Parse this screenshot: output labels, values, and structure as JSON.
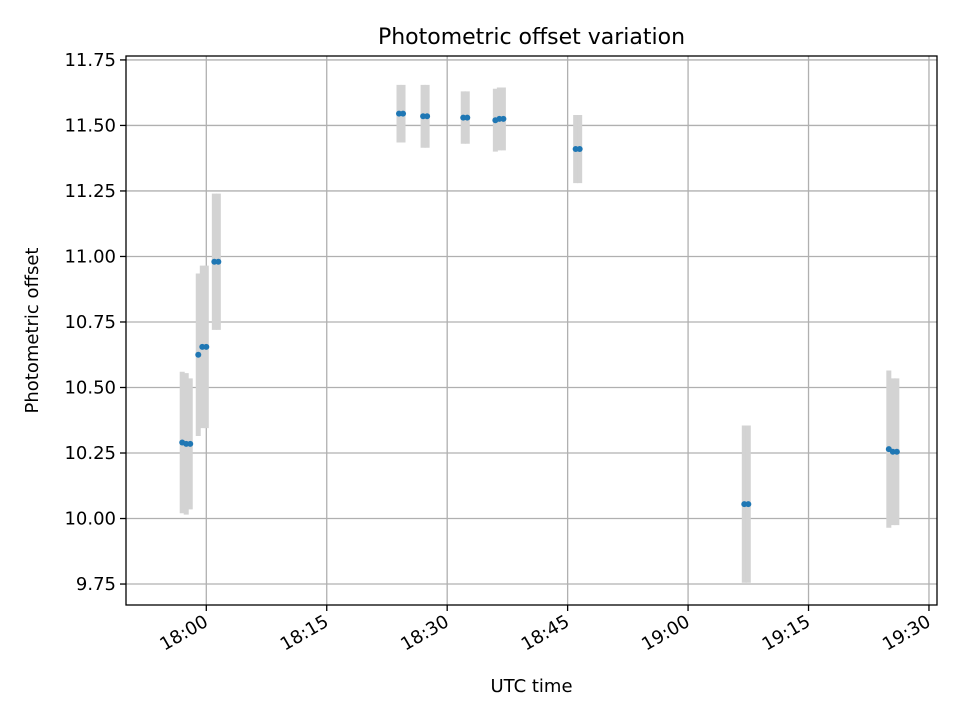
{
  "chart_data": {
    "type": "scatter",
    "title": "Photometric offset variation",
    "xlabel": "UTC time",
    "ylabel": "Photometric offset",
    "xlim": [
      "17:50",
      "19:31"
    ],
    "ylim": [
      9.67,
      11.765
    ],
    "x_ticks": [
      "18:00",
      "18:15",
      "18:30",
      "18:45",
      "19:00",
      "19:15",
      "19:30"
    ],
    "y_ticks": [
      "9.75",
      "10.00",
      "10.25",
      "10.50",
      "10.75",
      "11.00",
      "11.25",
      "11.50",
      "11.75"
    ],
    "grid": true,
    "colors": {
      "points": "#1f77b4",
      "error_bars": "#d3d3d3",
      "grid": "#b0b0b0"
    },
    "series": [
      {
        "points": [
          {
            "x": "17:57",
            "y": 10.29,
            "err": 0.27
          },
          {
            "x": "17:57:30",
            "y": 10.285,
            "err": 0.27
          },
          {
            "x": "17:58",
            "y": 10.285,
            "err": 0.25
          },
          {
            "x": "17:59",
            "y": 10.625,
            "err": 0.31
          },
          {
            "x": "17:59:30",
            "y": 10.655,
            "err": 0.31
          },
          {
            "x": "18:00",
            "y": 10.655,
            "err": 0.31
          },
          {
            "x": "18:01",
            "y": 10.98,
            "err": 0.26
          },
          {
            "x": "18:01:30",
            "y": 10.98,
            "err": 0.26
          },
          {
            "x": "18:24",
            "y": 11.545,
            "err": 0.11
          },
          {
            "x": "18:24:30",
            "y": 11.545,
            "err": 0.11
          },
          {
            "x": "18:27",
            "y": 11.535,
            "err": 0.12
          },
          {
            "x": "18:27:30",
            "y": 11.535,
            "err": 0.12
          },
          {
            "x": "18:32",
            "y": 11.53,
            "err": 0.1
          },
          {
            "x": "18:32:30",
            "y": 11.53,
            "err": 0.1
          },
          {
            "x": "18:36",
            "y": 11.52,
            "err": 0.12
          },
          {
            "x": "18:36:30",
            "y": 11.525,
            "err": 0.12
          },
          {
            "x": "18:37",
            "y": 11.525,
            "err": 0.12
          },
          {
            "x": "18:46",
            "y": 11.41,
            "err": 0.13
          },
          {
            "x": "18:46:30",
            "y": 11.41,
            "err": 0.13
          },
          {
            "x": "19:07",
            "y": 10.055,
            "err": 0.3
          },
          {
            "x": "19:07:30",
            "y": 10.055,
            "err": 0.3
          },
          {
            "x": "19:25",
            "y": 10.265,
            "err": 0.3
          },
          {
            "x": "19:25:30",
            "y": 10.255,
            "err": 0.28
          },
          {
            "x": "19:26",
            "y": 10.255,
            "err": 0.28
          }
        ]
      }
    ]
  }
}
